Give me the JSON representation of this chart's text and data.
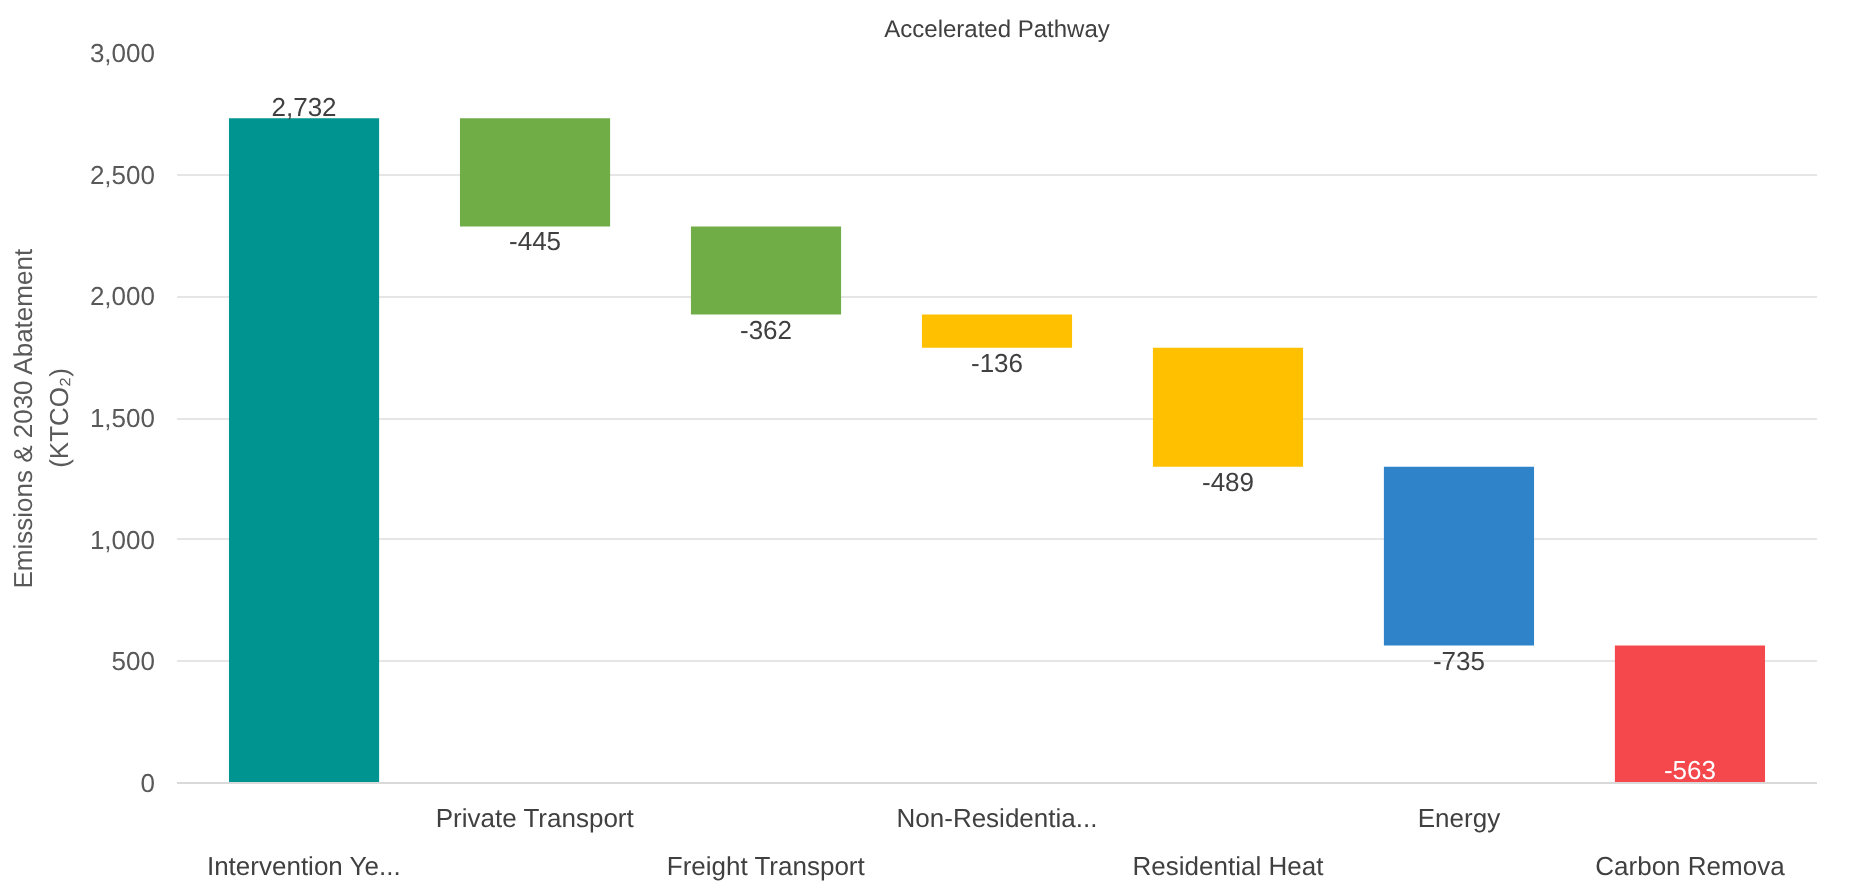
{
  "chart_data": {
    "type": "bar",
    "title": "Accelerated Pathway",
    "ylabel": "Emissions & 2030 Abatement\n(KTCO₂)",
    "categories": [
      "Intervention Ye...",
      "Private Transport",
      "Freight Transport",
      "Non-Residentia...",
      "Residential Heat",
      "Energy",
      "Carbon Remova"
    ],
    "values": [
      2732,
      -445,
      -362,
      -136,
      -489,
      -735,
      -563
    ],
    "base": [
      0,
      2732,
      2287,
      1925,
      1789,
      1300,
      565
    ],
    "colors": [
      "#009490",
      "#70ad47",
      "#70ad47",
      "#ffc000",
      "#ffc000",
      "#2e83c9",
      "#f4484d"
    ],
    "value_labels": [
      "2,732",
      "-445",
      "-362",
      "-136",
      "-489",
      "-735",
      "-563"
    ],
    "ylim": [
      0,
      3000
    ],
    "yticks": [
      {
        "value": 0,
        "label": "0"
      },
      {
        "value": 500,
        "label": "500"
      },
      {
        "value": 1000,
        "label": "1,000"
      },
      {
        "value": 1500,
        "label": "1,500"
      },
      {
        "value": 2000,
        "label": "2,000"
      },
      {
        "value": 2500,
        "label": "2,500"
      },
      {
        "value": 3000,
        "label": "3,000"
      }
    ],
    "grid": "y"
  }
}
